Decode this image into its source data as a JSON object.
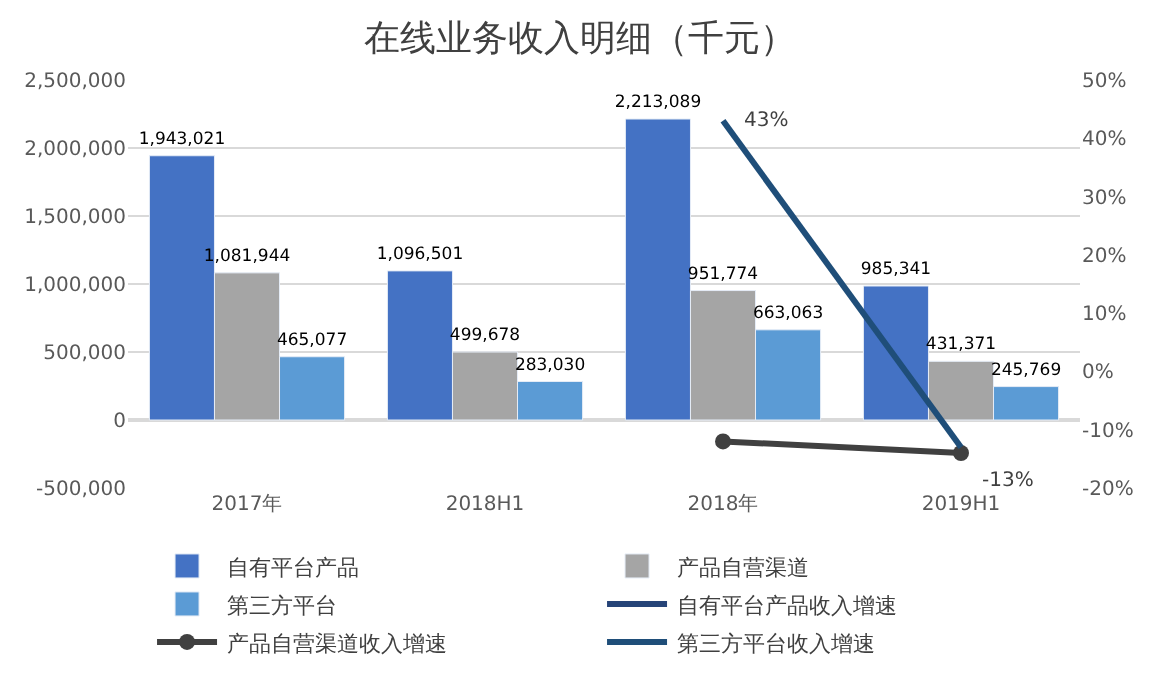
{
  "chart_data": {
    "type": "bar",
    "title": "在线业务收入明细（千元）",
    "categories": [
      "2017年",
      "2018H1",
      "2018年",
      "2019H1"
    ],
    "series": [
      {
        "name": "自有平台产品",
        "color": "#4472c4",
        "values": [
          1943021,
          1096501,
          2213089,
          985341
        ],
        "value_labels": [
          "1,943,021",
          "1,096,501",
          "2,213,089",
          "985,341"
        ]
      },
      {
        "name": "产品自营渠道",
        "color": "#a5a5a5",
        "values": [
          1081944,
          499678,
          951774,
          431371
        ],
        "value_labels": [
          "1,081,944",
          "499,678",
          "951,774",
          "431,371"
        ]
      },
      {
        "name": "第三方平台",
        "color": "#5b9bd5",
        "values": [
          465077,
          283030,
          663063,
          245769
        ],
        "value_labels": [
          "465,077",
          "283,030",
          "663,063",
          "245,769"
        ]
      },
      {
        "name": "自有平台产品收入增速",
        "type": "line",
        "axis": "y2",
        "color": "#264478",
        "values": [
          null,
          null,
          null,
          null
        ]
      },
      {
        "name": "产品自营渠道收入增速",
        "type": "line",
        "axis": "y2",
        "color": "#404040",
        "marker": "circle",
        "values": [
          null,
          null,
          -12,
          -14
        ]
      },
      {
        "name": "第三方平台收入增速",
        "type": "line",
        "axis": "y2",
        "color": "#1f4e79",
        "values": [
          null,
          null,
          43,
          -13
        ],
        "value_labels": [
          null,
          null,
          "43%",
          "-13%"
        ]
      }
    ],
    "ylim": [
      -500000,
      2500000
    ],
    "yticks": [
      {
        "value": -500000,
        "label": "-500,000"
      },
      {
        "value": 0,
        "label": "0"
      },
      {
        "value": 500000,
        "label": "500,000"
      },
      {
        "value": 1000000,
        "label": "1,000,000"
      },
      {
        "value": 1500000,
        "label": "1,500,000"
      },
      {
        "value": 2000000,
        "label": "2,000,000"
      },
      {
        "value": 2500000,
        "label": "2,500,000"
      }
    ],
    "y2lim": [
      -20,
      50
    ],
    "y2ticks": [
      {
        "value": -20,
        "label": "-20%"
      },
      {
        "value": -10,
        "label": "-10%"
      },
      {
        "value": 0,
        "label": "0%"
      },
      {
        "value": 10,
        "label": "10%"
      },
      {
        "value": 20,
        "label": "20%"
      },
      {
        "value": 30,
        "label": "30%"
      },
      {
        "value": 40,
        "label": "40%"
      },
      {
        "value": 50,
        "label": "50%"
      }
    ],
    "grid": "y",
    "legend": "bottom"
  }
}
